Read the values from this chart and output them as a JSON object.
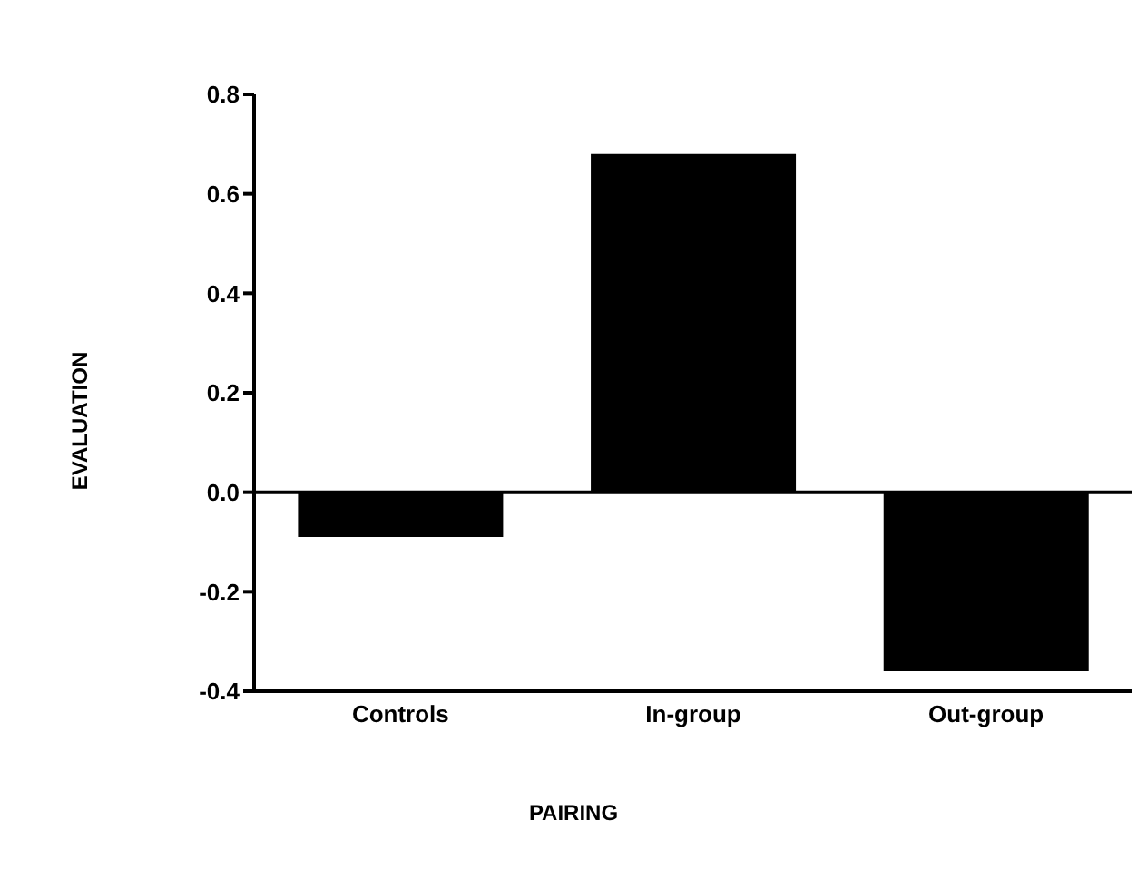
{
  "chart_data": {
    "type": "bar",
    "xlabel": "PAIRING",
    "ylabel": "EVALUATION",
    "categories": [
      "Controls",
      "In-group",
      "Out-group"
    ],
    "values": [
      -0.09,
      0.68,
      -0.36
    ],
    "color": "#000000",
    "ylim": [
      -0.4,
      0.8
    ],
    "yticks": [
      {
        "value": -0.4,
        "label": "-0.4"
      },
      {
        "value": -0.2,
        "label": "-0.2"
      },
      {
        "value": 0,
        "label": "0.0"
      },
      {
        "value": 0.2,
        "label": "0.2"
      },
      {
        "value": 0.4,
        "label": "0.4"
      },
      {
        "value": 0.6,
        "label": "0.6"
      },
      {
        "value": 0.8,
        "label": "0.8"
      }
    ],
    "ref_lines": [
      {
        "axis": "y",
        "value": 0,
        "color": "#000000"
      }
    ],
    "grid": false,
    "legend": false
  }
}
